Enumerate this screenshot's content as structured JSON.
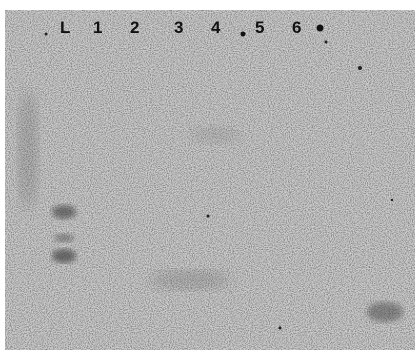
{
  "lane_labels": [
    "L",
    "1",
    "2",
    "3",
    "4",
    "5",
    "6"
  ],
  "colors": {
    "membrane": "#c9c9c9",
    "background": "#ffffff",
    "band": "#3a3a3a",
    "label": "#111111"
  }
}
